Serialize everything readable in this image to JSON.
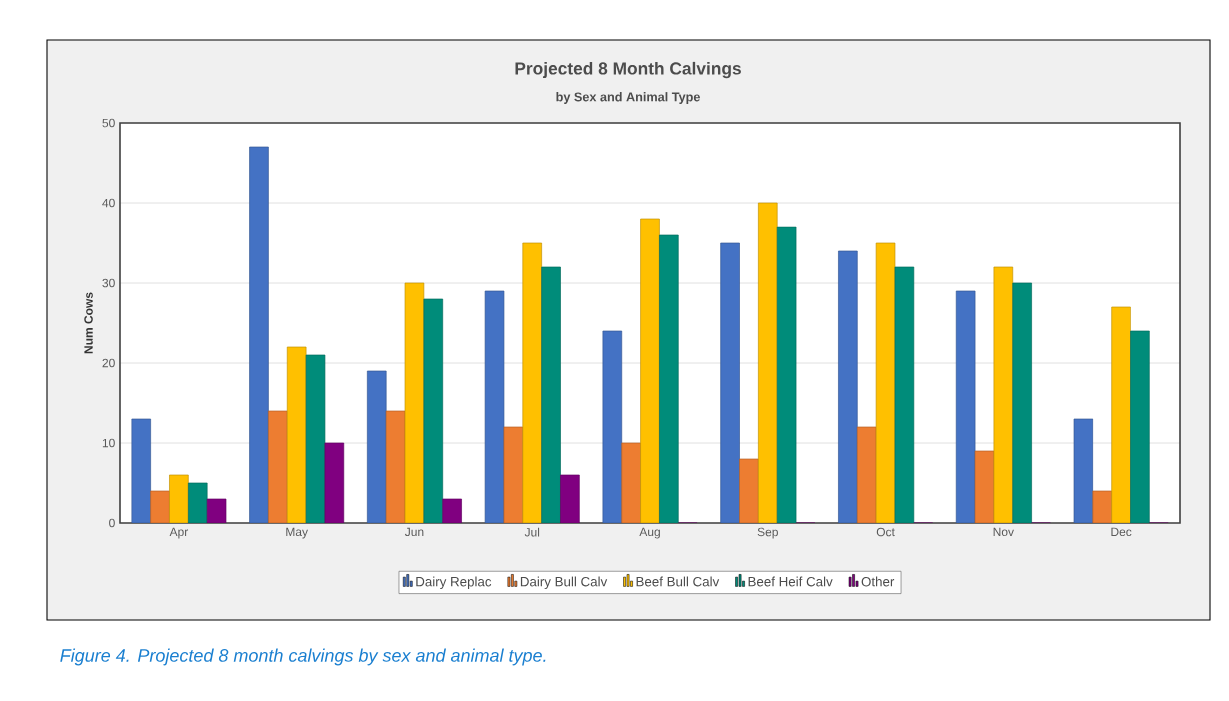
{
  "chart_data": {
    "type": "bar",
    "title": "Projected 8 Month Calvings",
    "subtitle": "by Sex and Animal Type",
    "ylabel": "Num Cows",
    "categories": [
      "Apr",
      "May",
      "Jun",
      "Jul",
      "Aug",
      "Sep",
      "Oct",
      "Nov",
      "Dec"
    ],
    "series": [
      {
        "name": "Dairy Replac",
        "color": "#4472c4",
        "values": [
          13,
          47,
          19,
          29,
          24,
          35,
          34,
          29,
          13
        ]
      },
      {
        "name": "Dairy Bull Calv",
        "color": "#ed7d31",
        "values": [
          4,
          14,
          14,
          12,
          10,
          8,
          12,
          9,
          4
        ]
      },
      {
        "name": "Beef Bull Calv",
        "color": "#ffc000",
        "values": [
          6,
          22,
          30,
          35,
          38,
          40,
          35,
          32,
          27
        ]
      },
      {
        "name": "Beef Heif Calv",
        "color": "#008c7a",
        "values": [
          5,
          21,
          28,
          32,
          36,
          37,
          32,
          30,
          24
        ]
      },
      {
        "name": "Other",
        "color": "#800080",
        "values": [
          3,
          10,
          3,
          6,
          0,
          0,
          0,
          0,
          0
        ]
      }
    ],
    "ylim": [
      0,
      50
    ],
    "yticks": [
      0,
      10,
      20,
      30,
      40,
      50
    ],
    "grid": "y",
    "legend": "bottom",
    "annotations": [
      "Figure 4. Projected 8 month calvings by sex and animal type."
    ]
  }
}
